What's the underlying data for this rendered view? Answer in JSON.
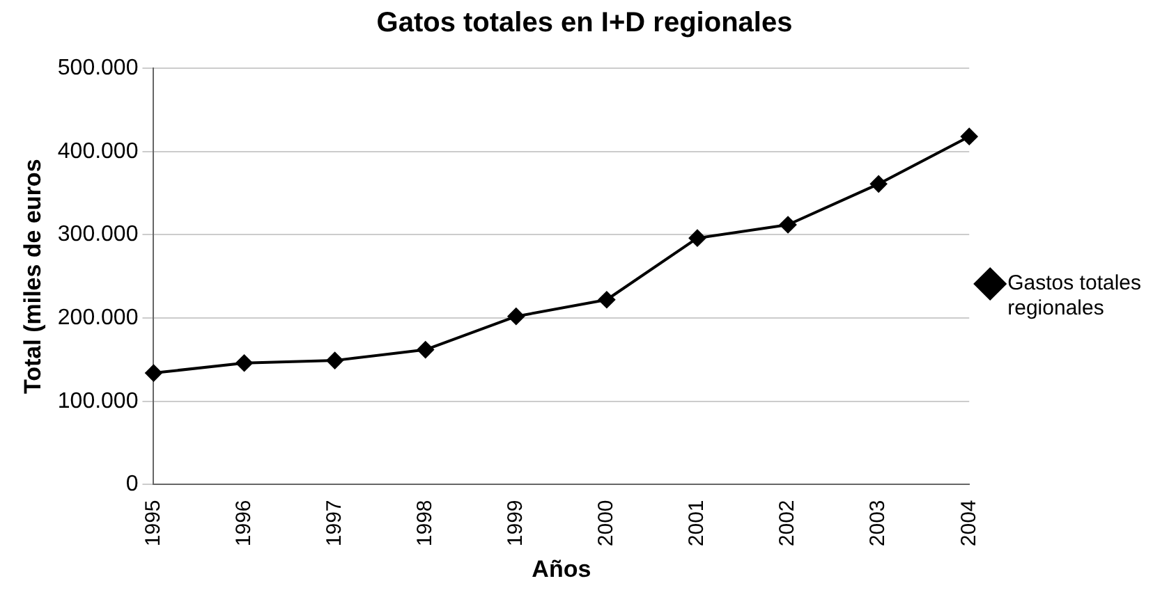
{
  "chart_data": {
    "type": "line",
    "title": "Gatos totales en I+D regionales",
    "xlabel": "Años",
    "ylabel": "Total (miles de euros",
    "categories": [
      "1995",
      "1996",
      "1997",
      "1998",
      "1999",
      "2000",
      "2001",
      "2002",
      "2003",
      "2004"
    ],
    "series": [
      {
        "name": "Gastos totales regionales",
        "color": "#000000",
        "values": [
          134000,
          146000,
          149000,
          162000,
          202000,
          222000,
          296000,
          312000,
          361000,
          418000
        ]
      }
    ],
    "ylim": [
      0,
      500000
    ],
    "yticks": [
      {
        "value": 0,
        "label": "0"
      },
      {
        "value": 100000,
        "label": "100.000"
      },
      {
        "value": 200000,
        "label": "200.000"
      },
      {
        "value": 300000,
        "label": "300.000"
      },
      {
        "value": 400000,
        "label": "400.000"
      },
      {
        "value": 500000,
        "label": "500.000"
      }
    ],
    "grid": "y",
    "legend": "right",
    "marker": "diamond",
    "line_style": "solid"
  }
}
